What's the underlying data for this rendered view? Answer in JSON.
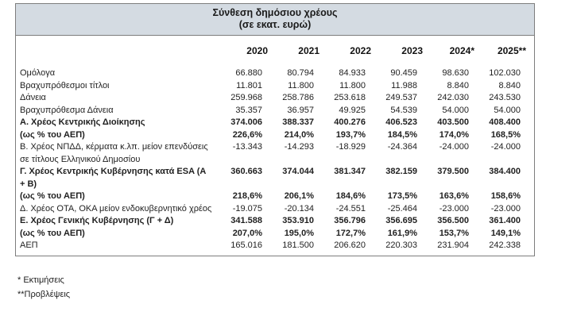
{
  "table": {
    "title_line1": "Σύνθεση δημόσιου χρέους",
    "title_line2": "(σε εκατ. ευρώ)",
    "columns": [
      "2020",
      "2021",
      "2022",
      "2023",
      "2024*",
      "2025**"
    ],
    "rows": [
      {
        "label": "Ομόλογα",
        "bold": false,
        "values": [
          "66.880",
          "80.794",
          "84.933",
          "90.459",
          "98.630",
          "102.030"
        ]
      },
      {
        "label": "Βραχυπρόθεσμοι τίτλοι",
        "bold": false,
        "values": [
          "11.801",
          "11.800",
          "11.800",
          "11.988",
          "8.840",
          "8.840"
        ]
      },
      {
        "label": "Δάνεια",
        "bold": false,
        "values": [
          "259.968",
          "258.786",
          "253.618",
          "249.537",
          "242.030",
          "243.530"
        ]
      },
      {
        "label": "Βραχυπρόθεσμα Δάνεια",
        "bold": false,
        "values": [
          "35.357",
          "36.957",
          "49.925",
          "54.539",
          "54.000",
          "54.000"
        ]
      },
      {
        "label": "Α. Χρέος Κεντρικής Διοίκησης",
        "bold": true,
        "values": [
          "374.006",
          "388.337",
          "400.276",
          "406.523",
          "403.500",
          "408.400"
        ]
      },
      {
        "label": "(ως % του ΑΕΠ)",
        "bold": true,
        "values": [
          "226,6%",
          "214,0%",
          "193,7%",
          "184,5%",
          "174,0%",
          "168,5%"
        ]
      },
      {
        "label": "Β. Χρέος ΝΠΔΔ, κέρματα κ.λπ. μείον επενδύσεις σε τίτλους Ελληνικού Δημοσίου",
        "bold": false,
        "values": [
          "-13.343",
          "-14.293",
          "-18.929",
          "-24.364",
          "-24.000",
          "-24.000"
        ]
      },
      {
        "label": "Γ. Χρέος Κεντρικής Κυβέρνησης κατά ESA (Α + Β)",
        "bold": true,
        "values": [
          "360.663",
          "374.044",
          "381.347",
          "382.159",
          "379.500",
          "384.400"
        ]
      },
      {
        "label": "(ως % του ΑΕΠ)",
        "bold": true,
        "values": [
          "218,6%",
          "206,1%",
          "184,6%",
          "173,5%",
          "163,6%",
          "158,6%"
        ]
      },
      {
        "label": "Δ. Χρέος ΟΤΑ, ΟΚΑ μείον ενδοκυβερνητικό χρέος",
        "bold": false,
        "values": [
          "-19.075",
          "-20.134",
          "-24.551",
          "-25.464",
          "-23.000",
          "-23.000"
        ]
      },
      {
        "label": "Ε. Χρέος Γενικής Κυβέρνησης (Γ + Δ)",
        "bold": true,
        "values": [
          "341.588",
          "353.910",
          "356.796",
          "356.695",
          "356.500",
          "361.400"
        ]
      },
      {
        "label": "(ως % του ΑΕΠ)",
        "bold": true,
        "values": [
          "207,0%",
          "195,0%",
          "172,7%",
          "161,9%",
          "153,7%",
          "149,1%"
        ]
      },
      {
        "label": "ΑΕΠ",
        "bold": false,
        "values": [
          "165.016",
          "181.500",
          "206.620",
          "220.303",
          "231.904",
          "242.338"
        ]
      }
    ]
  },
  "footnotes": [
    "* Εκτιμήσεις",
    "**Προβλέψεις"
  ],
  "colors": {
    "title_band_bg": "#d4dbe2",
    "border": "#7d7d7d",
    "text": "#1f1f1f"
  }
}
